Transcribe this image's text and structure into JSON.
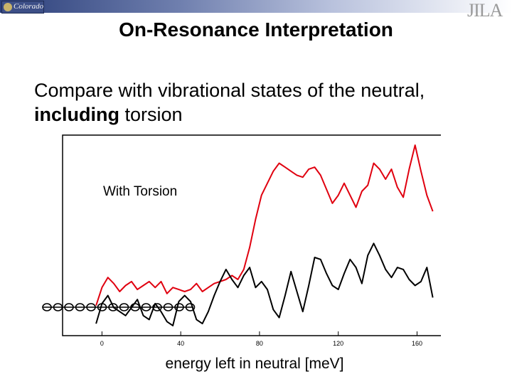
{
  "header": {
    "logo_left_text": "Colorado",
    "logo_right_text": "JILA"
  },
  "slide": {
    "title": "On-Resonance Interpretation",
    "line1": "Compare with vibrational states of the neutral,",
    "line2_bold": "including",
    "line2_rest": " torsion"
  },
  "colors": {
    "red_trace": "#e0000f",
    "black_trace": "#000000",
    "header_dark": "#2b3f7a"
  },
  "chart_data": {
    "type": "line",
    "title": "",
    "xlabel": "energy left in neutral [meV]",
    "ylabel": "",
    "xlim": [
      -20,
      175
    ],
    "ylim": [
      0,
      1
    ],
    "xticks": [
      0,
      40,
      80,
      120,
      160
    ],
    "xtick_labels": [
      "0",
      "40",
      "80",
      "120",
      "160"
    ],
    "annotation": "With Torsion",
    "grid": false,
    "series": [
      {
        "color": "#e0000f",
        "x": [
          -3,
          0,
          3,
          6,
          9,
          12,
          15,
          18,
          21,
          24,
          27,
          30,
          33,
          36,
          39,
          42,
          45,
          48,
          51,
          54,
          57,
          60,
          63,
          66,
          69,
          72,
          75,
          78,
          81,
          84,
          87,
          90,
          93,
          96,
          99,
          102,
          105,
          108,
          111,
          114,
          117,
          120,
          123,
          126,
          129,
          132,
          135,
          138,
          141,
          144,
          147,
          150,
          153,
          156,
          159,
          162,
          165,
          168
        ],
        "y": [
          0.15,
          0.24,
          0.29,
          0.26,
          0.22,
          0.25,
          0.27,
          0.23,
          0.25,
          0.27,
          0.24,
          0.27,
          0.21,
          0.24,
          0.23,
          0.22,
          0.23,
          0.26,
          0.22,
          0.24,
          0.26,
          0.27,
          0.28,
          0.3,
          0.28,
          0.33,
          0.44,
          0.58,
          0.7,
          0.76,
          0.82,
          0.86,
          0.84,
          0.82,
          0.8,
          0.79,
          0.83,
          0.84,
          0.8,
          0.73,
          0.66,
          0.7,
          0.76,
          0.7,
          0.64,
          0.72,
          0.75,
          0.86,
          0.83,
          0.78,
          0.83,
          0.74,
          0.69,
          0.83,
          0.95,
          0.82,
          0.7,
          0.62
        ]
      },
      {
        "color": "#000000",
        "x": [
          -3,
          0,
          3,
          6,
          9,
          12,
          15,
          18,
          21,
          24,
          27,
          30,
          33,
          36,
          39,
          42,
          45,
          48,
          51,
          54,
          57,
          60,
          63,
          66,
          69,
          72,
          75,
          78,
          81,
          84,
          87,
          90,
          93,
          96,
          99,
          102,
          105,
          108,
          111,
          114,
          117,
          120,
          123,
          126,
          129,
          132,
          135,
          138,
          141,
          144,
          147,
          150,
          153,
          156,
          159,
          162,
          165,
          168
        ],
        "y": [
          0.06,
          0.16,
          0.2,
          0.14,
          0.12,
          0.1,
          0.14,
          0.18,
          0.1,
          0.08,
          0.16,
          0.12,
          0.07,
          0.05,
          0.17,
          0.2,
          0.17,
          0.08,
          0.06,
          0.12,
          0.2,
          0.27,
          0.33,
          0.28,
          0.24,
          0.3,
          0.34,
          0.24,
          0.27,
          0.23,
          0.13,
          0.09,
          0.2,
          0.32,
          0.22,
          0.12,
          0.25,
          0.39,
          0.38,
          0.31,
          0.25,
          0.23,
          0.31,
          0.38,
          0.34,
          0.26,
          0.4,
          0.46,
          0.4,
          0.33,
          0.29,
          0.34,
          0.33,
          0.28,
          0.25,
          0.27,
          0.34,
          0.19
        ]
      }
    ]
  }
}
